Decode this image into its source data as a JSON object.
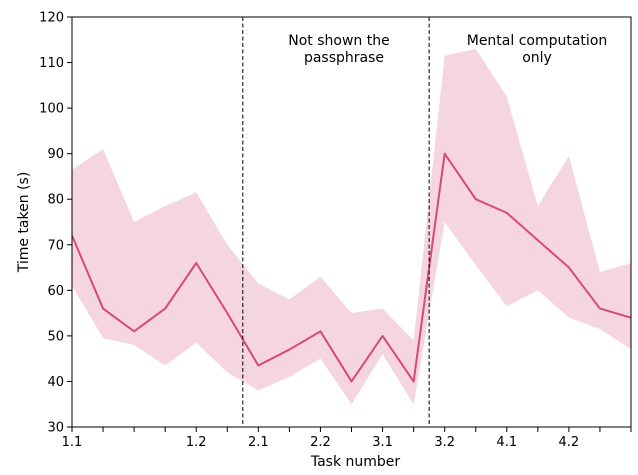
{
  "chart_data": {
    "type": "line",
    "xlabel": "Task number",
    "ylabel": "Time taken (s)",
    "ylim": [
      30,
      120
    ],
    "yticks": [
      30,
      40,
      50,
      60,
      70,
      80,
      90,
      100,
      110,
      120
    ],
    "xtick_labels": [
      "1.1",
      "1.2",
      "2.1",
      "2.2",
      "3.1",
      "3.2",
      "4.1",
      "4.2"
    ],
    "xtick_positions": [
      1,
      5,
      7,
      9,
      11,
      13,
      15,
      17
    ],
    "x_range": [
      1,
      19
    ],
    "grid": false,
    "series": [
      {
        "color": "#d6497a",
        "band_color": "#f5d5e0",
        "x": [
          1,
          2,
          3,
          4,
          5,
          6,
          7,
          8,
          9,
          10,
          11,
          12,
          13,
          14,
          15,
          16,
          17,
          18,
          19
        ],
        "values": [
          72,
          56,
          51,
          56,
          66,
          55,
          43.5,
          47,
          51,
          40,
          50,
          40,
          90,
          80,
          77,
          71,
          65,
          56,
          54
        ],
        "lower": [
          61,
          49.5,
          48,
          43.5,
          48.5,
          42,
          38,
          41,
          45,
          35,
          46,
          35,
          75,
          65.5,
          56.5,
          60,
          54,
          51.5,
          47
        ],
        "upper": [
          86.5,
          91,
          75,
          78.5,
          81.5,
          70,
          61.5,
          58,
          63,
          55,
          56,
          49,
          111.5,
          113,
          102.5,
          78.5,
          89.5,
          64,
          66
        ]
      }
    ],
    "vlines": [
      6.5,
      12.5
    ],
    "annotations": [
      {
        "lines": [
          "Not shown the",
          "passphrase"
        ]
      },
      {
        "lines": [
          "Mental computation",
          "only"
        ]
      }
    ]
  }
}
